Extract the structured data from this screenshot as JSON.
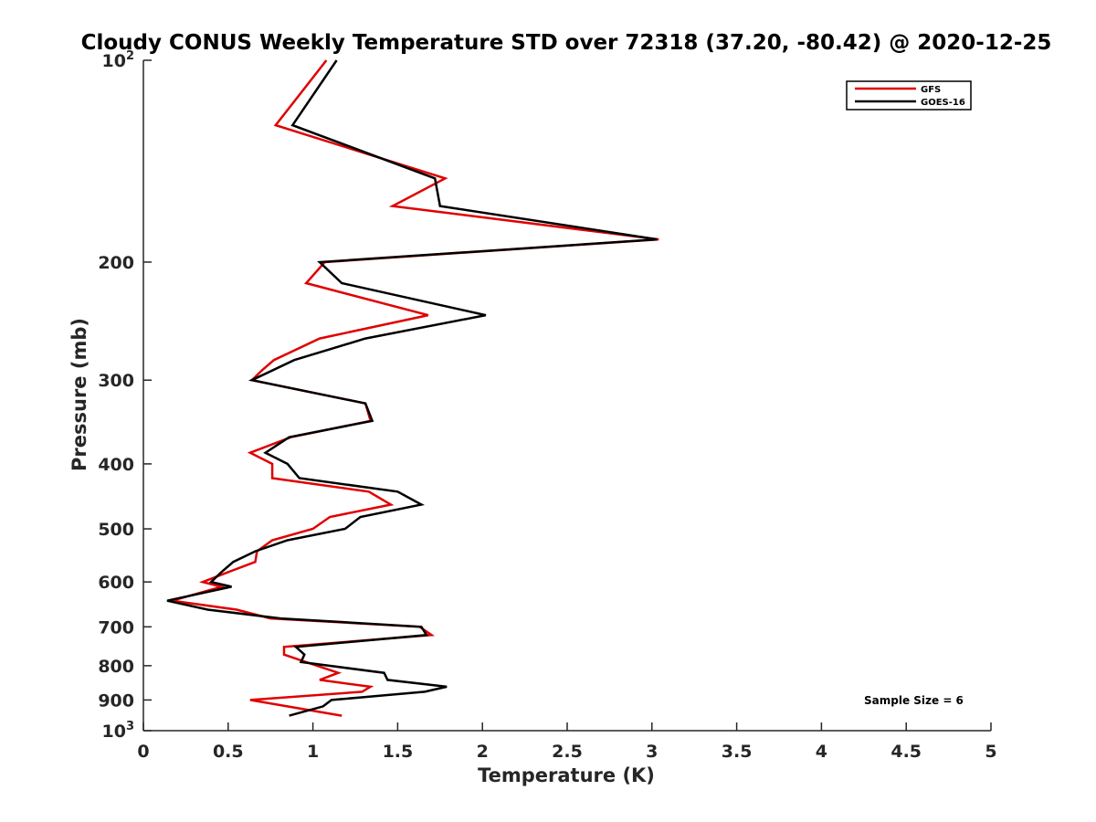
{
  "chart_data": {
    "type": "line",
    "title": "Cloudy CONUS Weekly Temperature STD over 72318 (37.20, -80.42) @ 2020-12-25",
    "xlabel": "Temperature (K)",
    "ylabel": "Pressure (mb)",
    "xlim": [
      0,
      5
    ],
    "ylim": [
      100,
      1000
    ],
    "yscale": "log",
    "y_reversed": true,
    "xticks": [
      "0",
      "0.5",
      "1",
      "1.5",
      "2",
      "2.5",
      "3",
      "3.5",
      "4",
      "4.5",
      "5"
    ],
    "yticks": [
      {
        "value": 100,
        "label": "10",
        "sup": "2"
      },
      {
        "value": 200,
        "label": "200",
        "sup": ""
      },
      {
        "value": 300,
        "label": "300",
        "sup": ""
      },
      {
        "value": 400,
        "label": "400",
        "sup": ""
      },
      {
        "value": 500,
        "label": "500",
        "sup": ""
      },
      {
        "value": 600,
        "label": "600",
        "sup": ""
      },
      {
        "value": 700,
        "label": "700",
        "sup": ""
      },
      {
        "value": 800,
        "label": "800",
        "sup": ""
      },
      {
        "value": 900,
        "label": "900",
        "sup": ""
      },
      {
        "value": 1000,
        "label": "10",
        "sup": "3"
      }
    ],
    "legend_position": "top-right",
    "annotation": "Sample Size = 6",
    "series": [
      {
        "name": "GFS",
        "color": "#e00000",
        "points": [
          [
            1.08,
            100
          ],
          [
            0.78,
            125
          ],
          [
            1.78,
            150
          ],
          [
            1.47,
            165
          ],
          [
            3.04,
            185
          ],
          [
            1.07,
            200
          ],
          [
            0.96,
            215
          ],
          [
            1.68,
            240
          ],
          [
            1.04,
            260
          ],
          [
            0.77,
            280
          ],
          [
            0.7,
            290
          ],
          [
            0.64,
            300
          ],
          [
            1.31,
            325
          ],
          [
            1.34,
            345
          ],
          [
            0.87,
            365
          ],
          [
            0.63,
            385
          ],
          [
            0.76,
            400
          ],
          [
            0.76,
            420
          ],
          [
            1.33,
            440
          ],
          [
            1.46,
            460
          ],
          [
            1.1,
            480
          ],
          [
            1.0,
            500
          ],
          [
            0.76,
            520
          ],
          [
            0.67,
            540
          ],
          [
            0.66,
            560
          ],
          [
            0.5,
            580
          ],
          [
            0.35,
            600
          ],
          [
            0.46,
            610
          ],
          [
            0.17,
            640
          ],
          [
            0.55,
            660
          ],
          [
            0.75,
            680
          ],
          [
            1.63,
            700
          ],
          [
            1.7,
            720
          ],
          [
            0.83,
            750
          ],
          [
            0.83,
            770
          ],
          [
            0.96,
            790
          ],
          [
            1.15,
            820
          ],
          [
            1.04,
            840
          ],
          [
            1.34,
            860
          ],
          [
            1.29,
            875
          ],
          [
            0.63,
            900
          ],
          [
            1.17,
            950
          ]
        ]
      },
      {
        "name": "GOES-16",
        "color": "#000000",
        "points": [
          [
            1.14,
            100
          ],
          [
            0.88,
            125
          ],
          [
            1.72,
            150
          ],
          [
            1.75,
            165
          ],
          [
            3.03,
            185
          ],
          [
            1.04,
            200
          ],
          [
            1.17,
            215
          ],
          [
            2.02,
            240
          ],
          [
            1.31,
            260
          ],
          [
            0.89,
            280
          ],
          [
            0.64,
            300
          ],
          [
            1.31,
            325
          ],
          [
            1.35,
            345
          ],
          [
            0.86,
            365
          ],
          [
            0.72,
            385
          ],
          [
            0.85,
            400
          ],
          [
            0.92,
            420
          ],
          [
            1.5,
            440
          ],
          [
            1.64,
            460
          ],
          [
            1.28,
            480
          ],
          [
            1.19,
            500
          ],
          [
            0.85,
            520
          ],
          [
            0.66,
            540
          ],
          [
            0.53,
            560
          ],
          [
            0.46,
            580
          ],
          [
            0.4,
            600
          ],
          [
            0.52,
            610
          ],
          [
            0.14,
            640
          ],
          [
            0.38,
            660
          ],
          [
            0.81,
            680
          ],
          [
            1.64,
            700
          ],
          [
            1.67,
            720
          ],
          [
            0.9,
            750
          ],
          [
            0.95,
            770
          ],
          [
            0.93,
            790
          ],
          [
            1.42,
            820
          ],
          [
            1.44,
            840
          ],
          [
            1.79,
            860
          ],
          [
            1.66,
            875
          ],
          [
            1.11,
            900
          ],
          [
            1.06,
            920
          ],
          [
            0.86,
            950
          ]
        ]
      }
    ]
  }
}
